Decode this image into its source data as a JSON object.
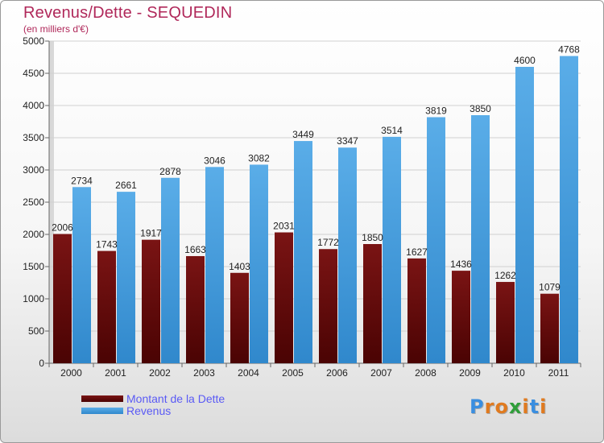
{
  "chart_data": {
    "type": "bar",
    "title": "Revenus/Dette - SEQUEDIN",
    "subtitle": "(en milliers d'€)",
    "categories": [
      "2000",
      "2001",
      "2002",
      "2003",
      "2004",
      "2005",
      "2006",
      "2007",
      "2008",
      "2009",
      "2010",
      "2011"
    ],
    "series": [
      {
        "name": "Montant de la Dette",
        "values": [
          2006,
          1743,
          1917,
          1663,
          1403,
          2031,
          1772,
          1850,
          1627,
          1436,
          1262,
          1079
        ],
        "labels": [
          "2006",
          "1743",
          "1917",
          "1663",
          "1403",
          "2031",
          "1772",
          "1850",
          "1627",
          "1436",
          "1262",
          "1079"
        ],
        "color": "#7a1414",
        "color_dark": "#4a0303"
      },
      {
        "name": "Revenus",
        "values": [
          2734,
          2661,
          2878,
          3046,
          3082,
          3449,
          3347,
          3514,
          3819,
          3850,
          4600,
          4768
        ],
        "labels": [
          "2734",
          "2661",
          "2878",
          "3046",
          "3082",
          "3449",
          "3347",
          "3514",
          "3819",
          "3850",
          "4600",
          "4768"
        ],
        "color": "#5aade8",
        "color_dark": "#3088cc"
      }
    ],
    "yticks": [
      0,
      500,
      1000,
      1500,
      2000,
      2500,
      3000,
      3500,
      4000,
      4500,
      5000
    ],
    "ylim": [
      0,
      5000
    ],
    "grid": true,
    "legend_position": "bottom-left"
  },
  "logo": {
    "letters": [
      "P",
      "r",
      "o",
      "x",
      "i",
      "t",
      "i"
    ],
    "colors": [
      "#3a8ee0",
      "#e07a1f",
      "#e07a1f",
      "#2f9e3a",
      "#e07a1f",
      "#3a8ee0",
      "#e07a1f"
    ]
  }
}
